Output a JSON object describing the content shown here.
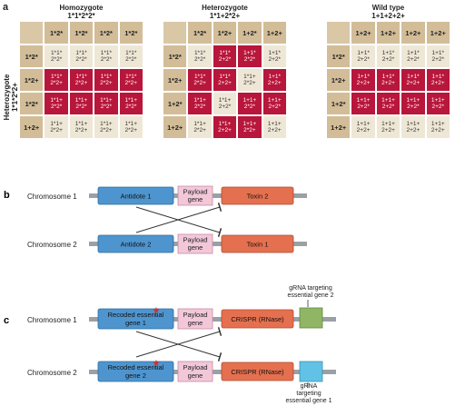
{
  "panel_a": {
    "letter": "a",
    "side_label": [
      "Heterozygote",
      "1*1*2*2+"
    ],
    "grids": [
      {
        "title": [
          "Homozygote",
          "1*1*2*2*"
        ],
        "col_headers": [
          "1*2*",
          "1*2*",
          "1*2*",
          "1*2*"
        ],
        "row_headers": [
          "1*2*",
          "1*2+",
          "1*2*",
          "1+2+"
        ],
        "cells": [
          [
            {
              "t": [
                "1*1*",
                "2*2*"
              ],
              "c": "light"
            },
            {
              "t": [
                "1*1*",
                "2*2*"
              ],
              "c": "light"
            },
            {
              "t": [
                "1*1*",
                "2*2*"
              ],
              "c": "light"
            },
            {
              "t": [
                "1*1*",
                "2*2*"
              ],
              "c": "light"
            }
          ],
          [
            {
              "t": [
                "1*1*",
                "2*2+"
              ],
              "c": "red"
            },
            {
              "t": [
                "1*1*",
                "2*2+"
              ],
              "c": "red"
            },
            {
              "t": [
                "1*1*",
                "2*2+"
              ],
              "c": "red"
            },
            {
              "t": [
                "1*1*",
                "2*2+"
              ],
              "c": "red"
            }
          ],
          [
            {
              "t": [
                "1*1+",
                "2*2*"
              ],
              "c": "red"
            },
            {
              "t": [
                "1*1+",
                "2*2*"
              ],
              "c": "red"
            },
            {
              "t": [
                "1*1+",
                "2*2*"
              ],
              "c": "red"
            },
            {
              "t": [
                "1*1+",
                "2*2*"
              ],
              "c": "red"
            }
          ],
          [
            {
              "t": [
                "1*1+",
                "2*2+"
              ],
              "c": "light"
            },
            {
              "t": [
                "1*1+",
                "2*2+"
              ],
              "c": "light"
            },
            {
              "t": [
                "1*1+",
                "2*2+"
              ],
              "c": "light"
            },
            {
              "t": [
                "1*1+",
                "2*2+"
              ],
              "c": "light"
            }
          ]
        ]
      },
      {
        "title": [
          "Heterozygote",
          "1*1+2*2+"
        ],
        "col_headers": [
          "1*2*",
          "1*2+",
          "1+2*",
          "1+2+"
        ],
        "row_headers": [
          "1*2*",
          "1*2+",
          "1+2*",
          "1+2+"
        ],
        "cells": [
          [
            {
              "t": [
                "1*1*",
                "2*2*"
              ],
              "c": "light"
            },
            {
              "t": [
                "1*1*",
                "2+2*"
              ],
              "c": "red"
            },
            {
              "t": [
                "1+1*",
                "2*2*"
              ],
              "c": "red"
            },
            {
              "t": [
                "1+1*",
                "2+2*"
              ],
              "c": "light"
            }
          ],
          [
            {
              "t": [
                "1*1*",
                "2*2+"
              ],
              "c": "red"
            },
            {
              "t": [
                "1*1*",
                "2+2+"
              ],
              "c": "red"
            },
            {
              "t": [
                "1*1+",
                "2*2+"
              ],
              "c": "light"
            },
            {
              "t": [
                "1+1*",
                "2+2+"
              ],
              "c": "red"
            }
          ],
          [
            {
              "t": [
                "1*1+",
                "2*2*"
              ],
              "c": "red"
            },
            {
              "t": [
                "1*1+",
                "2+2*"
              ],
              "c": "light"
            },
            {
              "t": [
                "1+1+",
                "2*2*"
              ],
              "c": "red"
            },
            {
              "t": [
                "1+1+",
                "2+2*"
              ],
              "c": "red"
            }
          ],
          [
            {
              "t": [
                "1*1+",
                "2*2+"
              ],
              "c": "light"
            },
            {
              "t": [
                "1*1+",
                "2+2+"
              ],
              "c": "red"
            },
            {
              "t": [
                "1+1+",
                "2*2+"
              ],
              "c": "red"
            },
            {
              "t": [
                "1+1+",
                "2+2+"
              ],
              "c": "light"
            }
          ]
        ]
      },
      {
        "title": [
          "Wild type",
          "1+1+2+2+"
        ],
        "col_headers": [
          "1+2+",
          "1+2+",
          "1+2+",
          "1+2+"
        ],
        "row_headers": [
          "1*2*",
          "1*2+",
          "1+2*",
          "1+2+"
        ],
        "cells": [
          [
            {
              "t": [
                "1+1*",
                "2+2*"
              ],
              "c": "light"
            },
            {
              "t": [
                "1+1*",
                "2+2*"
              ],
              "c": "light"
            },
            {
              "t": [
                "1+1*",
                "2+2*"
              ],
              "c": "light"
            },
            {
              "t": [
                "1+1*",
                "2+2*"
              ],
              "c": "light"
            }
          ],
          [
            {
              "t": [
                "1+1*",
                "2+2+"
              ],
              "c": "red"
            },
            {
              "t": [
                "1+1*",
                "2+2+"
              ],
              "c": "red"
            },
            {
              "t": [
                "1+1*",
                "2+2+"
              ],
              "c": "red"
            },
            {
              "t": [
                "1+1*",
                "2+2+"
              ],
              "c": "red"
            }
          ],
          [
            {
              "t": [
                "1+1+",
                "2+2*"
              ],
              "c": "red"
            },
            {
              "t": [
                "1+1+",
                "2+2*"
              ],
              "c": "red"
            },
            {
              "t": [
                "1+1+",
                "2+2*"
              ],
              "c": "red"
            },
            {
              "t": [
                "1+1+",
                "2+2*"
              ],
              "c": "red"
            }
          ],
          [
            {
              "t": [
                "1+1+",
                "2+2+"
              ],
              "c": "light"
            },
            {
              "t": [
                "1+1+",
                "2+2+"
              ],
              "c": "light"
            },
            {
              "t": [
                "1+1+",
                "2+2+"
              ],
              "c": "light"
            },
            {
              "t": [
                "1+1+",
                "2+2+"
              ],
              "c": "light"
            }
          ]
        ]
      }
    ]
  },
  "panel_b": {
    "letter": "b",
    "chromosome_1": {
      "label": "Chromosome 1",
      "antidote": "Antidote 1",
      "payload": [
        "Payload",
        "gene"
      ],
      "toxin": "Toxin 2"
    },
    "chromosome_2": {
      "label": "Chromosome 2",
      "antidote": "Antidote 2",
      "payload": [
        "Payload",
        "gene"
      ],
      "toxin": "Toxin 1"
    }
  },
  "panel_c": {
    "letter": "c",
    "chromosome_1": {
      "label": "Chromosome 1",
      "recoded": [
        "Recoded essential",
        "gene 1"
      ],
      "payload": [
        "Payload",
        "gene"
      ],
      "crispr": "CRISPR (RNase)",
      "grna": [
        "gRNA targeting",
        "essential gene 2"
      ]
    },
    "chromosome_2": {
      "label": "Chromosome 2",
      "recoded": [
        "Recoded essential",
        "gene 2"
      ],
      "payload": [
        "Payload",
        "gene"
      ],
      "crispr": "CRISPR (RNase)",
      "grna": [
        "gRNA",
        "targeting",
        "essential gene 1"
      ]
    }
  },
  "colors": {
    "red": "#b8163b",
    "light": "#efe7d6",
    "header": "#d2bd98",
    "blue": "#4e95cf",
    "pink": "#f2c8d9",
    "orange": "#e5704f",
    "green": "#8fb565",
    "cyan": "#62c2e6",
    "chromosome": "#9aa0a6"
  }
}
